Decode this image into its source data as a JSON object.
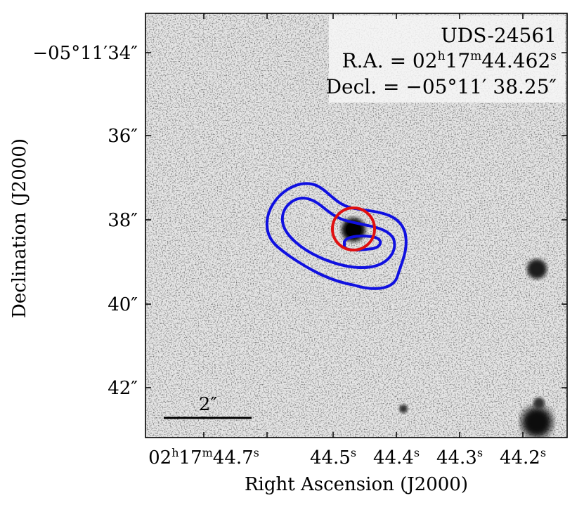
{
  "figure": {
    "source_name": "UDS-24561",
    "ra_text": {
      "prefix": "R.A. = 02",
      "h": "h",
      "mid": "17",
      "m": "m",
      "val": "44.462",
      "s": "s"
    },
    "dec_text": "Decl. = −05°11′ 38.25″",
    "x_axis_label": "Right Ascension (J2000)",
    "y_axis_label": "Declination (J2000)",
    "scale_bar_label": "2″",
    "x_tick_labels": [
      {
        "main": "02",
        "sup1": "h",
        "mid": "17",
        "sup2": "m",
        "val": "44.7",
        "sup3": "s"
      },
      {
        "val": "44.5",
        "sup3": "s"
      },
      {
        "val": "44.4",
        "sup3": "s"
      },
      {
        "val": "44.3",
        "sup3": "s"
      },
      {
        "val": "44.2",
        "sup3": "s"
      }
    ],
    "y_tick_labels": [
      "−05°11′34″",
      "36″",
      "38″",
      "40″",
      "42″"
    ],
    "contour_color": "#1010e0",
    "circle_color": "#e01010",
    "image_colormap": "grayscale-inverted"
  }
}
